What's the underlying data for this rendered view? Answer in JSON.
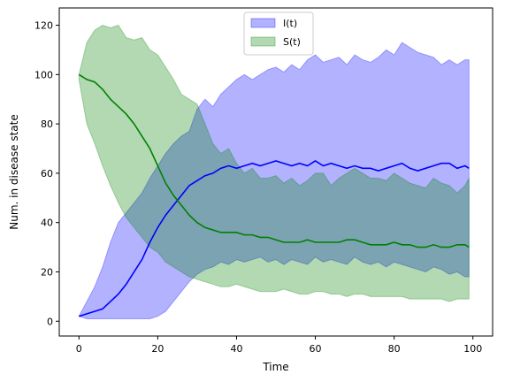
{
  "chart_data": {
    "type": "area",
    "xlabel": "Time",
    "ylabel": "Num. in disease state",
    "xlim": [
      -5,
      105
    ],
    "ylim": [
      -6,
      127
    ],
    "xticks": [
      0,
      20,
      40,
      60,
      80,
      100
    ],
    "yticks": [
      0,
      20,
      40,
      60,
      80,
      100,
      120
    ],
    "grid": false,
    "legend_position": "top-center",
    "colors": {
      "I": "#0000ff",
      "S": "#008000"
    },
    "series": [
      {
        "name": "I(t)",
        "band_alpha": 0.3,
        "x": [
          0,
          2,
          4,
          6,
          8,
          10,
          12,
          14,
          16,
          18,
          20,
          22,
          24,
          26,
          28,
          30,
          32,
          34,
          36,
          38,
          40,
          42,
          44,
          46,
          48,
          50,
          52,
          54,
          56,
          58,
          60,
          62,
          64,
          66,
          68,
          70,
          72,
          74,
          76,
          78,
          80,
          82,
          84,
          86,
          88,
          90,
          92,
          94,
          96,
          98,
          99
        ],
        "mean": [
          2,
          3,
          4,
          5,
          8,
          11,
          15,
          20,
          25,
          32,
          38,
          43,
          47,
          51,
          55,
          57,
          59,
          60,
          62,
          63,
          62,
          63,
          64,
          63,
          64,
          65,
          64,
          63,
          64,
          63,
          65,
          63,
          64,
          63,
          62,
          63,
          62,
          62,
          61,
          62,
          63,
          64,
          62,
          61,
          62,
          63,
          64,
          64,
          62,
          63,
          62
        ],
        "upper": [
          2,
          8,
          14,
          22,
          32,
          40,
          44,
          48,
          52,
          58,
          63,
          68,
          72,
          75,
          77,
          86,
          90,
          87,
          92,
          95,
          98,
          100,
          98,
          100,
          102,
          103,
          101,
          104,
          102,
          106,
          108,
          105,
          106,
          107,
          104,
          108,
          106,
          105,
          107,
          110,
          108,
          113,
          111,
          109,
          108,
          107,
          104,
          106,
          104,
          106,
          106
        ],
        "lower": [
          2,
          1,
          1,
          1,
          1,
          1,
          1,
          1,
          1,
          1,
          2,
          4,
          8,
          12,
          16,
          19,
          21,
          22,
          24,
          23,
          25,
          24,
          25,
          26,
          24,
          25,
          23,
          25,
          24,
          23,
          26,
          24,
          25,
          24,
          23,
          26,
          24,
          23,
          24,
          22,
          24,
          23,
          22,
          21,
          20,
          22,
          21,
          19,
          20,
          18,
          18
        ]
      },
      {
        "name": "S(t)",
        "band_alpha": 0.3,
        "x": [
          0,
          2,
          4,
          6,
          8,
          10,
          12,
          14,
          16,
          18,
          20,
          22,
          24,
          26,
          28,
          30,
          32,
          34,
          36,
          38,
          40,
          42,
          44,
          46,
          48,
          50,
          52,
          54,
          56,
          58,
          60,
          62,
          64,
          66,
          68,
          70,
          72,
          74,
          76,
          78,
          80,
          82,
          84,
          86,
          88,
          90,
          92,
          94,
          96,
          98,
          99
        ],
        "mean": [
          100,
          98,
          97,
          94,
          90,
          87,
          84,
          80,
          75,
          70,
          63,
          56,
          51,
          47,
          43,
          40,
          38,
          37,
          36,
          36,
          36,
          35,
          35,
          34,
          34,
          33,
          32,
          32,
          32,
          33,
          32,
          32,
          32,
          32,
          33,
          33,
          32,
          31,
          31,
          31,
          32,
          31,
          31,
          30,
          30,
          31,
          30,
          30,
          31,
          31,
          30
        ],
        "upper": [
          100,
          113,
          118,
          120,
          119,
          120,
          115,
          114,
          115,
          110,
          108,
          103,
          98,
          92,
          90,
          88,
          80,
          72,
          68,
          70,
          64,
          60,
          62,
          58,
          58,
          59,
          56,
          58,
          55,
          57,
          60,
          60,
          55,
          58,
          60,
          62,
          60,
          58,
          58,
          57,
          60,
          58,
          56,
          55,
          54,
          58,
          56,
          55,
          52,
          55,
          58
        ],
        "lower": [
          98,
          80,
          72,
          63,
          55,
          48,
          42,
          38,
          34,
          30,
          28,
          24,
          22,
          20,
          18,
          17,
          16,
          15,
          14,
          14,
          15,
          14,
          13,
          12,
          12,
          12,
          13,
          12,
          11,
          11,
          12,
          12,
          11,
          11,
          10,
          11,
          11,
          10,
          10,
          10,
          10,
          10,
          9,
          9,
          9,
          9,
          9,
          8,
          9,
          9,
          9
        ]
      }
    ]
  }
}
